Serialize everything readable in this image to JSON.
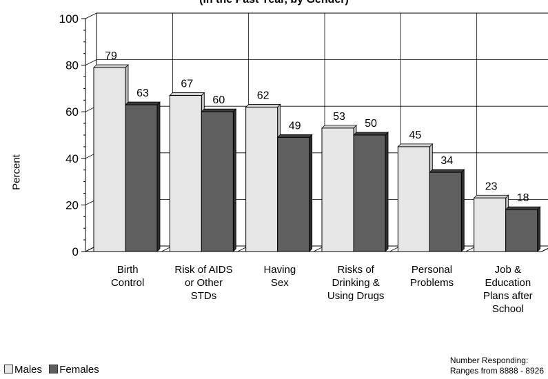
{
  "chart_data": {
    "type": "bar",
    "title": "(In the Past Year, by Gender)",
    "ylabel": "Percent",
    "xlabel": "",
    "ylim": [
      0,
      100
    ],
    "yticks": [
      "0",
      "20",
      "40",
      "60",
      "80",
      "100"
    ],
    "grid": true,
    "style": "3d",
    "legend_position": "bottom-left",
    "categories": [
      "Birth Control",
      "Risk of AIDS or Other STDs",
      "Having Sex",
      "Risks of Drinking & Using Drugs",
      "Personal Problems",
      "Job & Education Plans after School"
    ],
    "category_lines": [
      [
        "Birth",
        "Control"
      ],
      [
        "Risk of AIDS",
        "or Other",
        "STDs"
      ],
      [
        "Having",
        "Sex"
      ],
      [
        "Risks of",
        "Drinking &",
        "Using Drugs"
      ],
      [
        "Personal",
        "Problems"
      ],
      [
        "Job &",
        "Education",
        "Plans after",
        "School"
      ]
    ],
    "series": [
      {
        "name": "Males",
        "color": "#e6e6e6",
        "values": [
          79,
          67,
          62,
          53,
          45,
          23
        ]
      },
      {
        "name": "Females",
        "color": "#5f5f5f",
        "values": [
          63,
          60,
          49,
          50,
          34,
          18
        ]
      }
    ],
    "note": [
      "Number Responding:",
      "Ranges from 8888 - 8926"
    ]
  }
}
